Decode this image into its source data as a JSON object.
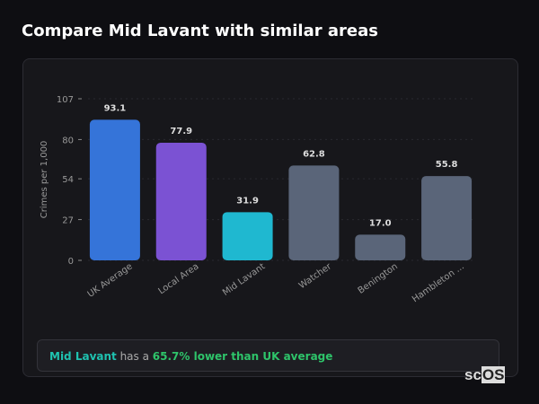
{
  "title": "Compare Mid Lavant with similar areas",
  "summary": {
    "area": "Mid Lavant",
    "middle": " has a ",
    "highlight": "65.7% lower than UK average"
  },
  "logo": {
    "text": "scOS"
  },
  "chart_data": {
    "type": "bar",
    "title": "",
    "xlabel": "",
    "ylabel": "Crimes per 1,000",
    "ylim": [
      0,
      107
    ],
    "yticks": [
      0,
      27,
      54,
      80,
      107
    ],
    "grid": true,
    "categories": [
      "UK Average",
      "Local Area",
      "Mid Lavant",
      "Watcher",
      "Benington",
      "Hambleton ..."
    ],
    "values": [
      93.1,
      77.9,
      31.9,
      62.8,
      17.0,
      55.8
    ],
    "value_labels": [
      "93.1",
      "77.9",
      "31.9",
      "62.8",
      "17.0",
      "55.8"
    ],
    "colors": [
      "#3574d9",
      "#7b52d3",
      "#1fb8d0",
      "#5a6579",
      "#5a6579",
      "#5a6579"
    ]
  }
}
